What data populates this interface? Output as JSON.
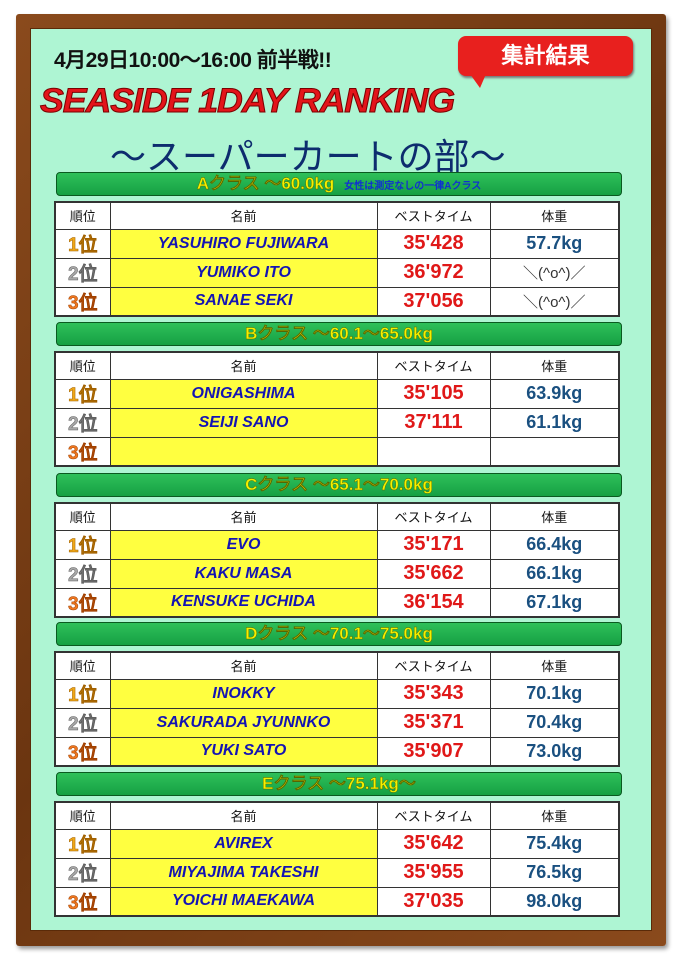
{
  "header": {
    "date": "4月29日10:00〜16:00 前半戦!!",
    "badge": "集計結果",
    "title": "SEASIDE 1DAY RANKING",
    "subtitle": "〜スーパーカートの部〜"
  },
  "columns": [
    "順位",
    "名前",
    "ベストタイム",
    "体重"
  ],
  "colors": {
    "background": "#aef5d3",
    "frame": "#6b3510",
    "class_bar": "#16a043",
    "name_cell": "#ffff40",
    "time": "#e01818"
  },
  "classes": [
    {
      "label": "Aクラス 〜60.0kg",
      "note": "女性は測定なしの一律Aクラス",
      "rows": [
        {
          "rank": "1位",
          "name": "YASUHIRO FUJIWARA",
          "time": "35'428",
          "weight": "57.7kg"
        },
        {
          "rank": "2位",
          "name": "YUMIKO ITO",
          "time": "36'972",
          "weight": "＼(^o^)／"
        },
        {
          "rank": "3位",
          "name": "SANAE SEKI",
          "time": "37'056",
          "weight": "＼(^o^)／"
        }
      ]
    },
    {
      "label": "Bクラス 〜60.1〜65.0kg",
      "rows": [
        {
          "rank": "1位",
          "name": "ONIGASHIMA",
          "time": "35'105",
          "weight": "63.9kg"
        },
        {
          "rank": "2位",
          "name": "SEIJI SANO",
          "time": "37'111",
          "weight": "61.1kg"
        },
        {
          "rank": "3位",
          "name": "",
          "time": "",
          "weight": ""
        }
      ]
    },
    {
      "label": "Cクラス 〜65.1〜70.0kg",
      "rows": [
        {
          "rank": "1位",
          "name": "EVO",
          "time": "35'171",
          "weight": "66.4kg"
        },
        {
          "rank": "2位",
          "name": "KAKU MASA",
          "time": "35'662",
          "weight": "66.1kg"
        },
        {
          "rank": "3位",
          "name": "KENSUKE UCHIDA",
          "time": "36'154",
          "weight": "67.1kg"
        }
      ]
    },
    {
      "label": "Dクラス 〜70.1〜75.0kg",
      "rows": [
        {
          "rank": "1位",
          "name": "INOKKY",
          "time": "35'343",
          "weight": "70.1kg"
        },
        {
          "rank": "2位",
          "name": "SAKURADA JYUNNKO",
          "time": "35'371",
          "weight": "70.4kg"
        },
        {
          "rank": "3位",
          "name": "YUKI SATO",
          "time": "35'907",
          "weight": "73.0kg"
        }
      ]
    },
    {
      "label": "Eクラス 〜75.1kg〜",
      "rows": [
        {
          "rank": "1位",
          "name": "AVIREX",
          "time": "35'642",
          "weight": "75.4kg"
        },
        {
          "rank": "2位",
          "name": "MIYAJIMA TAKESHI",
          "time": "35'955",
          "weight": "76.5kg"
        },
        {
          "rank": "3位",
          "name": "YOICHI MAEKAWA",
          "time": "37'035",
          "weight": "98.0kg"
        }
      ]
    }
  ]
}
